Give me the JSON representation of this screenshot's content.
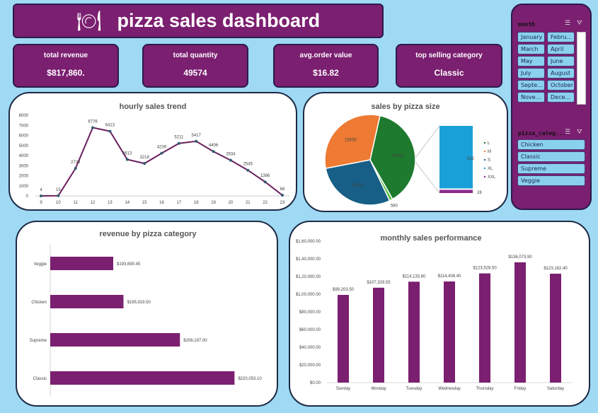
{
  "header": {
    "title": "pizza sales dashboard",
    "icon": "plate-cutlery-icon"
  },
  "kpis": [
    {
      "label": "total revenue",
      "value": "$817,860."
    },
    {
      "label": "total quantity",
      "value": "49574"
    },
    {
      "label": "avg.order value",
      "value": "$16.82"
    },
    {
      "label": "top selling category",
      "value": "Classic"
    }
  ],
  "slicers": {
    "month": {
      "title": "month",
      "items": [
        "January",
        "Febru...",
        "March",
        "April",
        "May",
        "June",
        "July",
        "August",
        "Septe...",
        "October",
        "Nove...",
        "Dece..."
      ]
    },
    "category": {
      "title": "pizza_categ...",
      "items": [
        "Chicken",
        "Classic",
        "Supreme",
        "Veggie"
      ]
    }
  },
  "colors": {
    "accent": "#7b1f70",
    "background": "#9fd9f4"
  },
  "chart_data": [
    {
      "type": "line",
      "title": "hourly sales trend",
      "x": [
        9,
        10,
        11,
        12,
        13,
        14,
        15,
        16,
        17,
        18,
        19,
        20,
        21,
        22,
        23
      ],
      "values": [
        4,
        15,
        2728,
        6776,
        6413,
        3613,
        3218,
        4239,
        5211,
        5417,
        4406,
        3534,
        2545,
        1386,
        68
      ],
      "ylim": [
        0,
        8000
      ],
      "yticks": [
        0,
        1000,
        2000,
        3000,
        4000,
        5000,
        6000,
        7000,
        8000
      ],
      "color": "#6a1f5e"
    },
    {
      "type": "pie",
      "title": "sales by pizza size",
      "categories": [
        "L",
        "M",
        "S",
        "XL",
        "XXL"
      ],
      "values": [
        18956,
        15635,
        14403,
        552,
        28
      ],
      "colors": [
        "#1e7a2e",
        "#ee7a33",
        "#175f86",
        "#1aa0d9",
        "#8b2c8f"
      ],
      "labels": [
        "18956",
        "15635",
        "14403",
        "580",
        "552",
        "28"
      ],
      "legend": "right",
      "sub_chart": "bar-of-pie (XL, XXL)"
    },
    {
      "type": "bar",
      "orientation": "horizontal",
      "title": "revenue by pizza category",
      "categories": [
        "Veggie",
        "Chicken",
        "Supreme",
        "Classic"
      ],
      "values": [
        193690.45,
        195919.5,
        208197.0,
        220053.1
      ],
      "labels": [
        "$193,690.45",
        "$195,919.50",
        "$208,197.00",
        "$220,053.10"
      ],
      "xlim": [
        180000,
        222000
      ],
      "color": "#7b1f70"
    },
    {
      "type": "bar",
      "title": "monthly sales performance",
      "categories": [
        "Sunday",
        "Monday",
        "Tuesday",
        "Wednesday",
        "Thursday",
        "Friday",
        "Saturday"
      ],
      "values": [
        99203.5,
        107329.55,
        114133.8,
        114408.4,
        123528.5,
        136073.9,
        123182.4
      ],
      "labels": [
        "$99,203.50",
        "$107,329.55",
        "$114,133.80",
        "$114,408.40",
        "$123,528.50",
        "$136,073.90",
        "$123,182.40"
      ],
      "ylim": [
        0,
        160000
      ],
      "yticks": [
        "$0.00",
        "$20,000.00",
        "$40,000.00",
        "$60,000.00",
        "$80,000.00",
        "$1,00,000.00",
        "$1,20,000.00",
        "$1,40,000.00",
        "$1,60,000.00"
      ],
      "color": "#7b1f70"
    }
  ]
}
